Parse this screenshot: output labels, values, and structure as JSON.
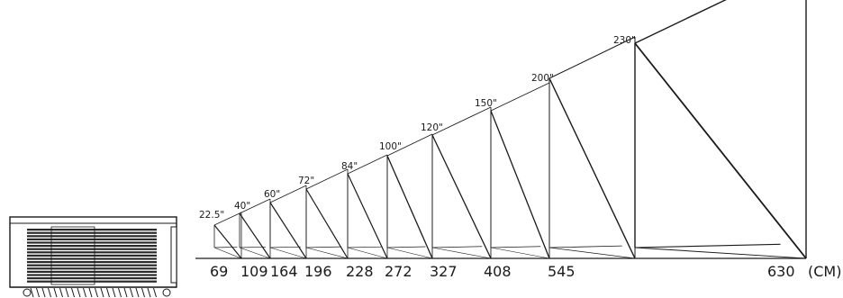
{
  "diagram": {
    "unit": "(CM)",
    "line_color": "#1a1a1a",
    "items": [
      {
        "size": "22.5\"",
        "distance": "69"
      },
      {
        "size": "40\"",
        "distance": "109"
      },
      {
        "size": "60\"",
        "distance": "164"
      },
      {
        "size": "72\"",
        "distance": "196"
      },
      {
        "size": "84\"",
        "distance": "228"
      },
      {
        "size": "100\"",
        "distance": "272"
      },
      {
        "size": "120\"",
        "distance": "327"
      },
      {
        "size": "150\"",
        "distance": "408"
      },
      {
        "size": "200\"",
        "distance": "545"
      },
      {
        "size": "230\"",
        "distance": "630"
      }
    ]
  }
}
